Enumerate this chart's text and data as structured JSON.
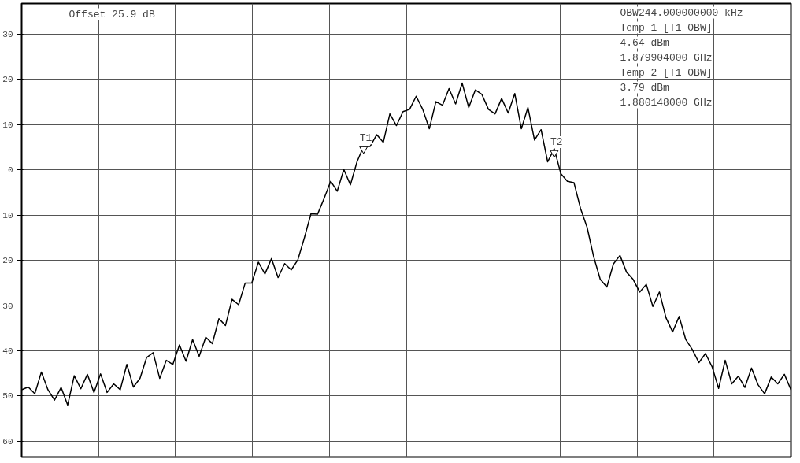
{
  "chart_data": {
    "type": "line",
    "categories": [
      null,
      null,
      null,
      null,
      null,
      null,
      null,
      null,
      null,
      null,
      null,
      null,
      null,
      null,
      null,
      null,
      null,
      null,
      null,
      null,
      null,
      null,
      null,
      null,
      null,
      null,
      null,
      null,
      null,
      null,
      null,
      null,
      null,
      null,
      null,
      null,
      null,
      null,
      null,
      null,
      null,
      null,
      null,
      null,
      null,
      null,
      null,
      null,
      null,
      null,
      null,
      null,
      null,
      null,
      null,
      null,
      null,
      null,
      null,
      null,
      null,
      null,
      null,
      null,
      null,
      null,
      null,
      null,
      null,
      null,
      null,
      null,
      null,
      null,
      null,
      null,
      null,
      null,
      null,
      null,
      null,
      null,
      null,
      null,
      null,
      null,
      null,
      null,
      null,
      null,
      null,
      null,
      null,
      null,
      null,
      null,
      null,
      null,
      null,
      null,
      null,
      null,
      null,
      null,
      null,
      null,
      null,
      null,
      null,
      null,
      null,
      null,
      null,
      null,
      null,
      null,
      null,
      null
    ],
    "series": [
      {
        "color": "#000000",
        "values": [
          -48.6,
          -48.0,
          -49.5,
          -44.7,
          -48.6,
          -50.9,
          -48.1,
          -52.0,
          -45.5,
          -48.4,
          -45.2,
          -49.2,
          -45.1,
          -49.2,
          -47.3,
          -48.6,
          -43.0,
          -48.0,
          -46.1,
          -41.5,
          -40.4,
          -46.1,
          -42.1,
          -43.0,
          -38.7,
          -42.3,
          -37.5,
          -41.2,
          -37.0,
          -38.4,
          -32.9,
          -34.4,
          -28.6,
          -29.8,
          -25.0,
          -25.0,
          -20.4,
          -23.0,
          -19.6,
          -23.8,
          -20.7,
          -22.1,
          -19.9,
          -15.0,
          -9.7,
          -9.8,
          -6.3,
          -2.5,
          -4.7,
          0.1,
          -3.3,
          1.8,
          5.2,
          5.2,
          7.8,
          6.1,
          12.4,
          9.8,
          12.9,
          13.4,
          16.3,
          13.4,
          9.1,
          15.1,
          14.3,
          18.0,
          14.6,
          19.2,
          13.8,
          17.7,
          16.7,
          13.4,
          12.4,
          15.8,
          12.6,
          16.9,
          9.1,
          13.8,
          6.6,
          8.9,
          1.8,
          4.7,
          -0.8,
          -2.5,
          -2.8,
          -8.5,
          -12.7,
          -19.2,
          -24.2,
          -25.9,
          -20.8,
          -18.9,
          -22.6,
          -24.2,
          -27.0,
          -25.3,
          -30.2,
          -27.0,
          -32.7,
          -35.8,
          -32.4,
          -37.5,
          -39.7,
          -42.6,
          -40.6,
          -43.5,
          -48.3,
          -42.1,
          -47.3,
          -45.6,
          -48.1,
          -43.8,
          -47.5,
          -49.5,
          -45.8,
          -47.3,
          -45.2,
          -48.6
        ]
      },
      {
        "type": "scatter",
        "color": "#ffffff",
        "values": [
          null,
          null,
          null,
          null,
          null,
          null,
          null,
          null,
          null,
          null,
          null,
          null,
          null,
          null,
          null,
          null,
          null,
          null,
          null,
          null,
          null,
          null,
          null,
          null,
          null,
          null,
          null,
          null,
          null,
          null,
          null,
          null,
          null,
          null,
          null,
          null,
          null,
          null,
          null,
          null,
          null,
          null,
          null,
          null,
          null,
          null,
          null,
          null,
          null,
          null,
          null,
          null,
          4.64,
          null,
          null,
          null,
          null,
          null,
          null,
          null,
          null,
          null,
          null,
          null,
          null,
          null,
          null,
          null,
          null,
          null,
          null,
          null,
          null,
          null,
          null,
          null,
          null,
          null,
          null,
          null,
          null,
          3.79,
          null,
          null,
          null,
          null,
          null,
          null,
          null,
          null,
          null,
          null,
          null,
          null,
          null,
          null,
          null,
          null,
          null,
          null,
          null,
          null,
          null,
          null,
          null,
          null,
          null,
          null,
          null,
          null,
          null,
          null,
          null,
          null,
          null,
          null,
          null,
          null
        ]
      }
    ],
    "ylim": [
      -63.5,
      36.8
    ],
    "yticks": [
      30,
      20,
      10,
      0,
      {
        "value": -10,
        "label": "10"
      },
      {
        "value": -20,
        "label": "20"
      },
      {
        "value": -30,
        "label": "30"
      },
      {
        "value": -40,
        "label": "40"
      },
      {
        "value": -50,
        "label": "50"
      },
      {
        "value": -60,
        "label": "60"
      }
    ],
    "tick_labels": "y",
    "grid": true,
    "line_style": "solid",
    "annotations": [
      "Offset  25.9 dB",
      "OBW244.000000000 kHz",
      "Temp 1 [T1 OBW]",
      "4.64 dBm",
      "1.879904000 GHz",
      "Temp 2 [T1 OBW]",
      "3.79 dBm",
      "1.880148000 GHz",
      {
        "text": "T1",
        "y": 4.64
      },
      {
        "text": "T2",
        "y": 3.79
      }
    ]
  }
}
